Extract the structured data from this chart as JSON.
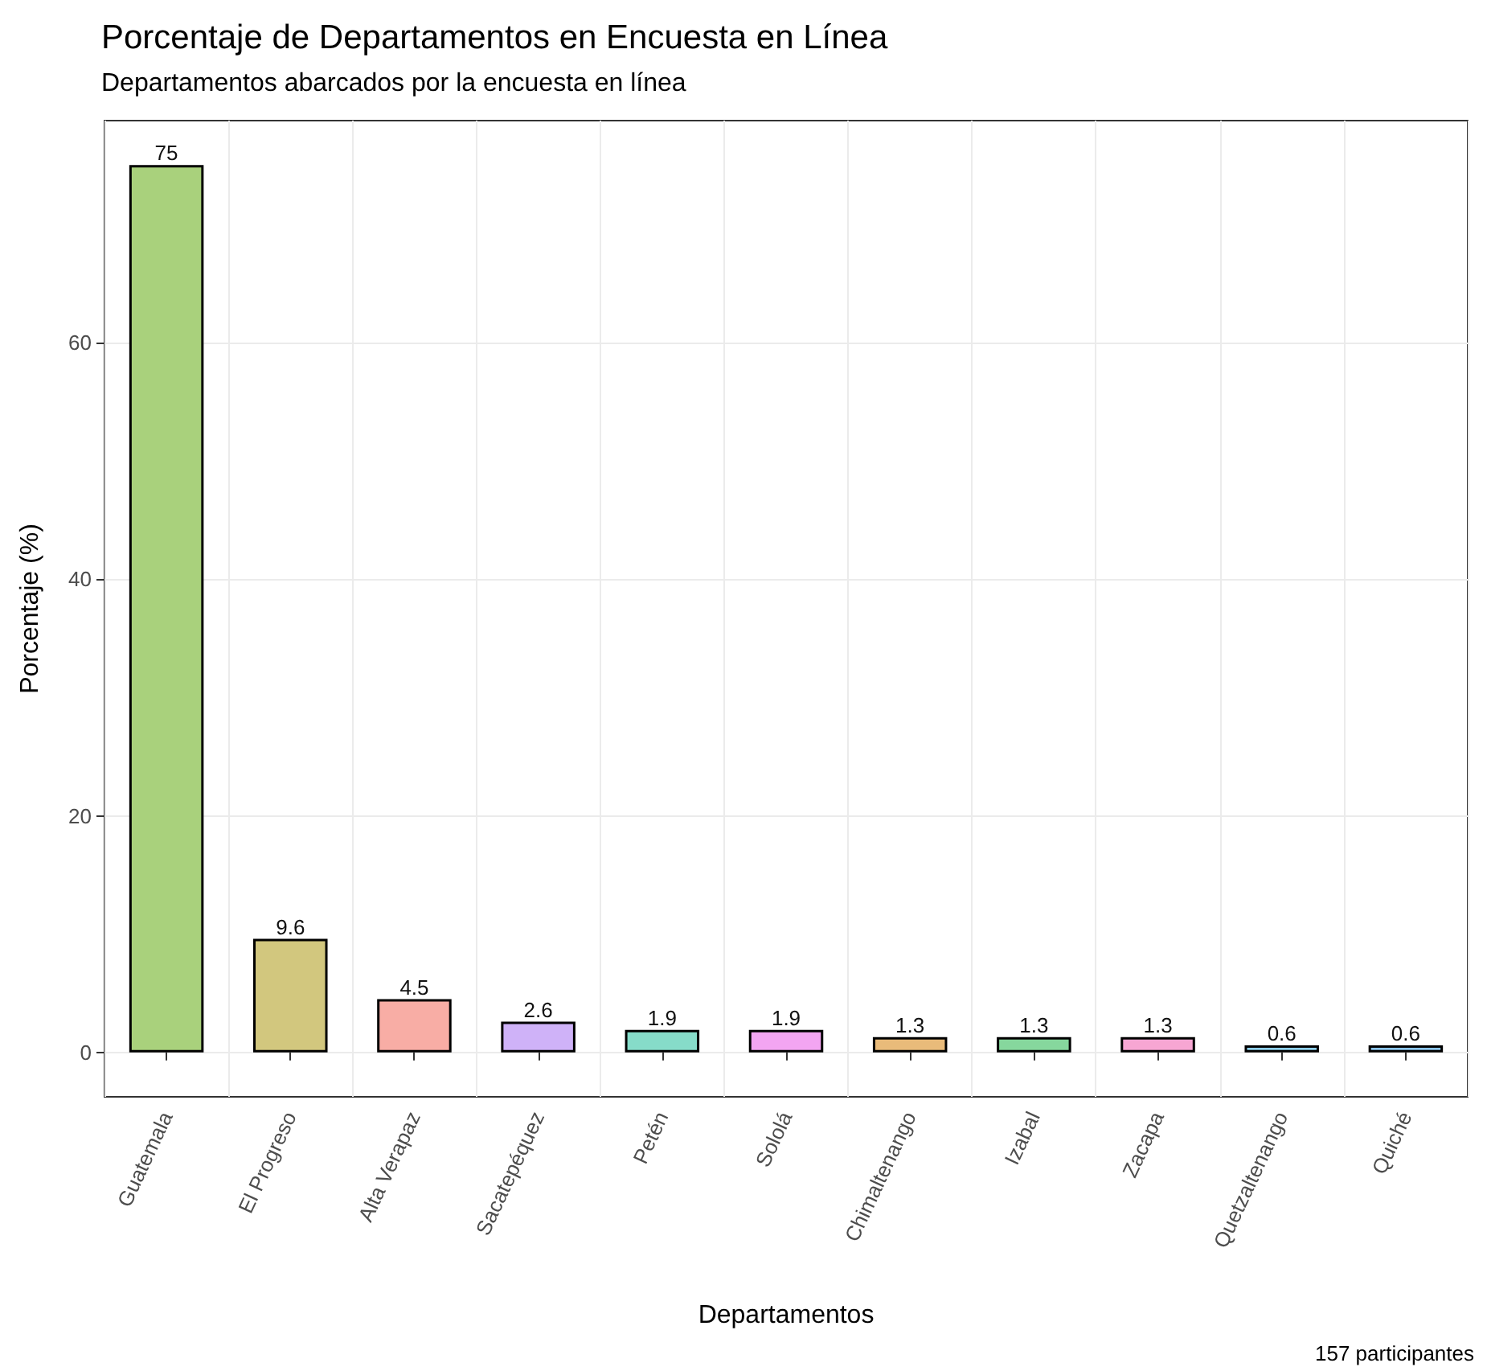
{
  "chart_data": {
    "type": "bar",
    "title": "Porcentaje de Departamentos en Encuesta en Línea",
    "subtitle": "Departamentos abarcados por la encuesta en línea",
    "xlabel": "Departamentos",
    "ylabel": "Porcentaje (%)",
    "annotations": [
      "157 participantes"
    ],
    "categories": [
      "Guatemala",
      "El Progreso",
      "Alta Verapaz",
      "Sacatepéquez",
      "Petén",
      "Sololá",
      "Chimaltenango",
      "Izabal",
      "Zacapa",
      "Quetzaltenango",
      "Quiché"
    ],
    "values": [
      75,
      9.6,
      4.5,
      2.6,
      1.9,
      1.9,
      1.3,
      1.3,
      1.3,
      0.6,
      0.6
    ],
    "colors": [
      "#a9d17c",
      "#d2c77e",
      "#f8ada5",
      "#cfb2f8",
      "#86dcc9",
      "#f3a5f2",
      "#e9bb7a",
      "#86d79d",
      "#f7a6d3",
      "#8fd0ec",
      "#8cc6ee"
    ],
    "ylim": [
      -3.75,
      78.75
    ],
    "yticks": [
      0,
      20,
      40,
      60
    ],
    "grid": true,
    "data_labels": true
  }
}
